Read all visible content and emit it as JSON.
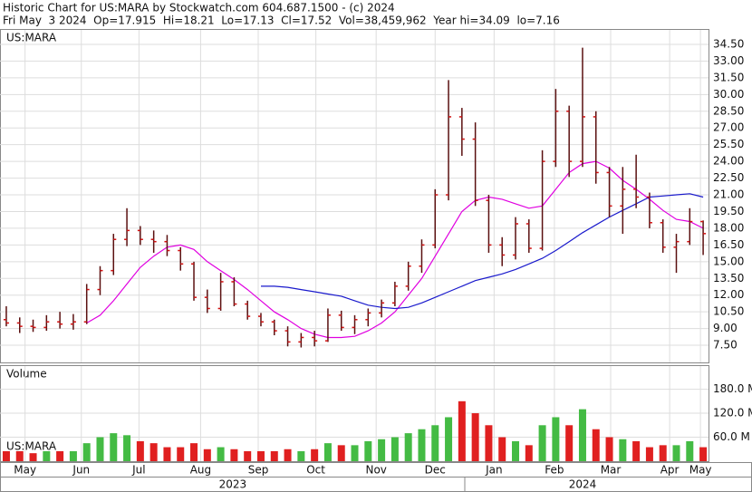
{
  "chart_data": {
    "type": "ohlc",
    "title": "Historic Chart for US:MARA by Stockwatch.com 604.687.1500 - (c) 2024",
    "subtitle": "Fri May  3 2024  Op=17.915  Hi=18.21  Lo=17.13  Cl=17.52  Vol=38,459,962  Year hi=34.09  lo=7.16",
    "symbol": "US:MARA",
    "categories": [
      null,
      null,
      null,
      null,
      null,
      null,
      null,
      null,
      null,
      null,
      null,
      null,
      null,
      null,
      null,
      null,
      null,
      null,
      null,
      null,
      null,
      null,
      null,
      null,
      null,
      null,
      null,
      null,
      null,
      null,
      null,
      null,
      null,
      null,
      null,
      null,
      null,
      null,
      null,
      null,
      null,
      null,
      null,
      null,
      null,
      null,
      null,
      null,
      null,
      null,
      null,
      null,
      null
    ],
    "bar_color": "#5a1010",
    "tick_color": "#d01010",
    "open": [
      9.8,
      9.5,
      9.2,
      9.1,
      9.6,
      9.4,
      9.6,
      12.5,
      14.2,
      17,
      17.8,
      17,
      16.8,
      16,
      14.8,
      11.8,
      10.8,
      13.2,
      11.2,
      10.1,
      9.6,
      8.8,
      7.8,
      8.2,
      7.9,
      10.2,
      9.1,
      9.8,
      10.4,
      11.3,
      12.8,
      14.6,
      16.5,
      21,
      28,
      26,
      20.5,
      16.5,
      15.6,
      18.4,
      16.2,
      24,
      28.5,
      24,
      28,
      23,
      20,
      21.5,
      20.8,
      18.5,
      16.3,
      16.8,
      18.6
    ],
    "high": [
      11,
      10,
      9.8,
      10.2,
      10.5,
      10.3,
      13,
      14.6,
      17.5,
      19.8,
      18.2,
      17.8,
      17.4,
      16.3,
      15,
      12.5,
      14,
      13.6,
      11.5,
      10.4,
      9.8,
      9.2,
      8.6,
      8.8,
      10.8,
      10.6,
      10.2,
      10.8,
      11.6,
      13.2,
      15,
      17,
      21.5,
      31.3,
      28.8,
      27.5,
      21,
      17.2,
      19,
      18.8,
      25,
      30.5,
      29,
      34.2,
      28.5,
      23.5,
      23.5,
      24.6,
      21.2,
      18.8,
      17.5,
      19.8,
      18.7
    ],
    "low": [
      9.2,
      8.6,
      8.7,
      8.8,
      9,
      8.9,
      9.4,
      12,
      13.8,
      16.4,
      16.5,
      15.8,
      15.5,
      14.2,
      11.5,
      10.4,
      10.6,
      11,
      9.8,
      9.2,
      8.4,
      7.4,
      7.3,
      7.4,
      7.8,
      8.8,
      8.5,
      9.2,
      10,
      11,
      12.4,
      14,
      16.2,
      20.5,
      24.5,
      20,
      15.8,
      14.6,
      15.2,
      15.8,
      16,
      23.5,
      22.6,
      23.5,
      22,
      19,
      17.5,
      19.8,
      18,
      15.8,
      14,
      16.5,
      15.6
    ],
    "close": [
      9.5,
      9.2,
      9.1,
      9.6,
      9.4,
      9.6,
      12.5,
      14.2,
      17,
      17.8,
      17,
      16.8,
      16,
      14.8,
      11.8,
      10.8,
      13.2,
      11.2,
      10.1,
      9.6,
      8.8,
      7.8,
      8.2,
      7.9,
      10.2,
      9.1,
      9.8,
      10.4,
      11.3,
      12.8,
      14.6,
      16.5,
      21,
      28,
      26,
      20.5,
      16.5,
      15.6,
      18.4,
      16.2,
      24,
      28.5,
      24,
      28,
      23,
      20,
      21.5,
      20.8,
      18.5,
      16.3,
      16.8,
      18.6,
      17.52
    ],
    "series": [
      {
        "color": "#e000e0",
        "values": [
          null,
          null,
          null,
          null,
          null,
          null,
          9.5,
          10.2,
          11.5,
          13,
          14.5,
          15.5,
          16.3,
          16.5,
          16.1,
          15,
          14.2,
          13.4,
          12.5,
          11.5,
          10.5,
          9.8,
          9,
          8.5,
          8.2,
          8.2,
          8.3,
          8.8,
          9.5,
          10.5,
          12,
          13.5,
          15.5,
          17.5,
          19.5,
          20.5,
          20.8,
          20.6,
          20.2,
          19.8,
          20,
          21.5,
          23,
          23.8,
          24,
          23.4,
          22.3,
          21.5,
          20.6,
          19.6,
          18.8,
          18.6,
          18
        ]
      },
      {
        "color": "#1a1acc",
        "values": [
          null,
          null,
          null,
          null,
          null,
          null,
          null,
          null,
          null,
          null,
          null,
          null,
          null,
          null,
          null,
          null,
          null,
          null,
          null,
          12.8,
          12.8,
          12.7,
          12.5,
          12.3,
          12.1,
          11.9,
          11.5,
          11.1,
          10.9,
          10.8,
          10.9,
          11.3,
          11.8,
          12.3,
          12.8,
          13.3,
          13.6,
          13.9,
          14.3,
          14.8,
          15.3,
          16,
          16.8,
          17.6,
          18.3,
          19,
          19.6,
          20.2,
          20.8,
          20.9,
          21,
          21.1,
          20.8
        ]
      }
    ],
    "ylim": [
      5.96,
      35.8
    ],
    "yticks": [
      {
        "value": 7.5,
        "label": "7.50"
      },
      {
        "value": 9,
        "label": "9.00"
      },
      {
        "value": 10.5,
        "label": "10.50"
      },
      {
        "value": 12,
        "label": "12.00"
      },
      {
        "value": 13.5,
        "label": "13.50"
      },
      {
        "value": 15,
        "label": "15.00"
      },
      {
        "value": 16.5,
        "label": "16.50"
      },
      {
        "value": 18,
        "label": "18.00"
      },
      {
        "value": 19.5,
        "label": "19.50"
      },
      {
        "value": 21,
        "label": "21.00"
      },
      {
        "value": 22.5,
        "label": "22.50"
      },
      {
        "value": 24,
        "label": "24.00"
      },
      {
        "value": 25.5,
        "label": "25.50"
      },
      {
        "value": 27,
        "label": "27.00"
      },
      {
        "value": 28.5,
        "label": "28.50"
      },
      {
        "value": 30,
        "label": "30.00"
      },
      {
        "value": 31.5,
        "label": "31.50"
      },
      {
        "value": 33,
        "label": "33.00"
      },
      {
        "value": 34.5,
        "label": "34.50"
      }
    ],
    "grid": true,
    "xlim": [
      -0.47,
      52.4
    ],
    "xticks": [
      {
        "value": 1.4,
        "label": "May"
      },
      {
        "value": 5.6,
        "label": "Jun"
      },
      {
        "value": 9.9,
        "label": "Jul"
      },
      {
        "value": 14.5,
        "label": "Aug"
      },
      {
        "value": 18.8,
        "label": "Sep"
      },
      {
        "value": 23.1,
        "label": "Oct"
      },
      {
        "value": 27.6,
        "label": "Nov"
      },
      {
        "value": 32,
        "label": "Dec"
      },
      {
        "value": 36.4,
        "label": "Jan"
      },
      {
        "value": 40.9,
        "label": "Feb"
      },
      {
        "value": 45.1,
        "label": "Mar"
      },
      {
        "value": 49.5,
        "label": "Apr"
      },
      {
        "value": 51.8,
        "label": "May"
      }
    ],
    "years": [
      {
        "value": 16.9,
        "label": "2023"
      },
      {
        "value": 43,
        "label": "2024"
      }
    ],
    "volume": {
      "label": "Volume",
      "symbol": "US:MARA",
      "up_color": "#44bb44",
      "down_color": "#e02020",
      "values": [
        25,
        25,
        20,
        25,
        25,
        25,
        45,
        60,
        70,
        65,
        50,
        45,
        35,
        35,
        45,
        30,
        35,
        30,
        25,
        25,
        25,
        30,
        25,
        30,
        45,
        40,
        40,
        50,
        55,
        60,
        70,
        80,
        90,
        110,
        150,
        120,
        90,
        60,
        50,
        40,
        90,
        110,
        90,
        130,
        80,
        60,
        55,
        50,
        35,
        40,
        40,
        50,
        35
      ],
      "ylim": [
        0,
        238
      ],
      "yticks": [
        {
          "value": 60,
          "label": "60.0 M"
        },
        {
          "value": 120,
          "label": "120.0 M"
        },
        {
          "value": 180,
          "label": "180.0 M"
        }
      ]
    }
  }
}
